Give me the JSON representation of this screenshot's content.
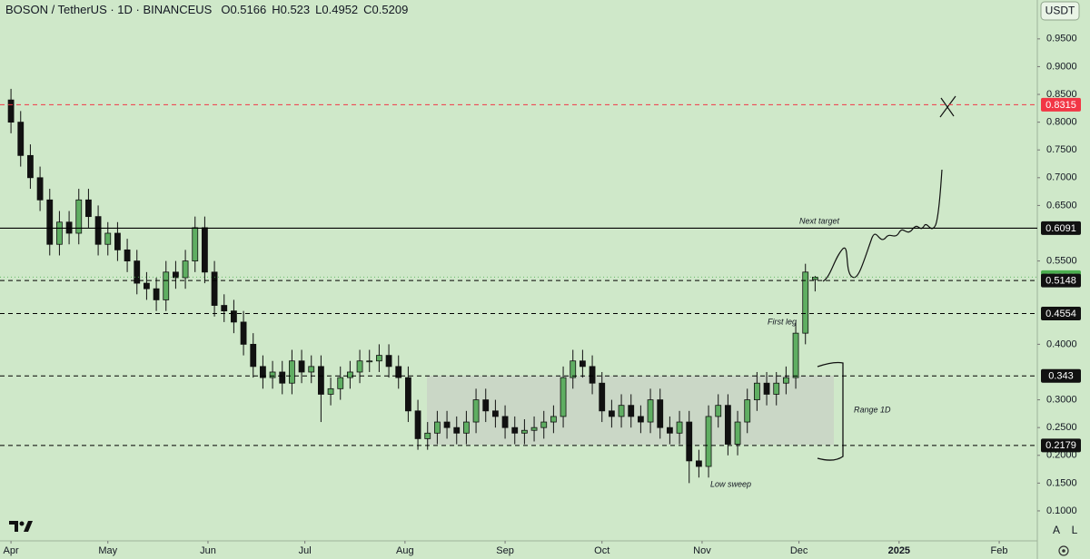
{
  "header": {
    "symbol": "BOSON / TetherUS · 1D · BINANCEUS",
    "ohlc": [
      {
        "label": "O",
        "value": 0.5166
      },
      {
        "label": "H",
        "value": 0.523
      },
      {
        "label": "L",
        "value": 0.4952
      },
      {
        "label": "C",
        "value": 0.5209
      }
    ]
  },
  "currency_button": "USDT",
  "scale_buttons": [
    "A",
    "L"
  ],
  "chart_data": {
    "type": "candlestick",
    "up_color": "#5fae62",
    "down_color": "#111111",
    "x": [
      0,
      3,
      6,
      9,
      12,
      15,
      18,
      21,
      24,
      27,
      30,
      33,
      36,
      39,
      42,
      45,
      48,
      51,
      54,
      57,
      60,
      63,
      66,
      69,
      72,
      75,
      78,
      81,
      84,
      87,
      90,
      93,
      96,
      99,
      102,
      105,
      108,
      111,
      114,
      117,
      120,
      123,
      126,
      129,
      132,
      135,
      138,
      141,
      144,
      147,
      150,
      153,
      156,
      159,
      162,
      165,
      168,
      171,
      174,
      177,
      180,
      183,
      186,
      189,
      192,
      195,
      198,
      201,
      204,
      207,
      210,
      213,
      216,
      219,
      222,
      225,
      228,
      231,
      234,
      237,
      240,
      243,
      246,
      249
    ],
    "open": [
      0.84,
      0.8,
      0.74,
      0.7,
      0.66,
      0.58,
      0.62,
      0.6,
      0.66,
      0.63,
      0.58,
      0.6,
      0.57,
      0.55,
      0.51,
      0.5,
      0.48,
      0.53,
      0.52,
      0.55,
      0.61,
      0.53,
      0.47,
      0.46,
      0.44,
      0.4,
      0.36,
      0.34,
      0.35,
      0.33,
      0.37,
      0.35,
      0.36,
      0.31,
      0.32,
      0.34,
      0.35,
      0.37,
      0.37,
      0.38,
      0.36,
      0.34,
      0.28,
      0.23,
      0.24,
      0.26,
      0.25,
      0.24,
      0.26,
      0.3,
      0.28,
      0.27,
      0.25,
      0.24,
      0.245,
      0.25,
      0.26,
      0.27,
      0.34,
      0.37,
      0.36,
      0.33,
      0.28,
      0.27,
      0.29,
      0.27,
      0.26,
      0.3,
      0.25,
      0.24,
      0.26,
      0.19,
      0.18,
      0.27,
      0.29,
      0.22,
      0.26,
      0.3,
      0.33,
      0.31,
      0.33,
      0.34,
      0.42,
      0.5166
    ],
    "high": [
      0.86,
      0.82,
      0.76,
      0.72,
      0.68,
      0.64,
      0.64,
      0.68,
      0.68,
      0.65,
      0.62,
      0.62,
      0.59,
      0.57,
      0.53,
      0.52,
      0.55,
      0.55,
      0.57,
      0.63,
      0.63,
      0.55,
      0.49,
      0.48,
      0.46,
      0.42,
      0.38,
      0.37,
      0.37,
      0.39,
      0.39,
      0.38,
      0.38,
      0.34,
      0.36,
      0.37,
      0.39,
      0.39,
      0.4,
      0.4,
      0.38,
      0.36,
      0.3,
      0.26,
      0.28,
      0.28,
      0.27,
      0.28,
      0.32,
      0.32,
      0.3,
      0.29,
      0.27,
      0.265,
      0.27,
      0.28,
      0.29,
      0.36,
      0.39,
      0.39,
      0.38,
      0.35,
      0.3,
      0.31,
      0.31,
      0.29,
      0.32,
      0.32,
      0.27,
      0.28,
      0.28,
      0.21,
      0.29,
      0.31,
      0.31,
      0.28,
      0.32,
      0.35,
      0.35,
      0.35,
      0.36,
      0.44,
      0.545,
      0.523
    ],
    "low": [
      0.78,
      0.72,
      0.68,
      0.64,
      0.56,
      0.56,
      0.58,
      0.58,
      0.61,
      0.56,
      0.56,
      0.55,
      0.53,
      0.49,
      0.48,
      0.46,
      0.46,
      0.5,
      0.5,
      0.53,
      0.51,
      0.45,
      0.44,
      0.42,
      0.38,
      0.34,
      0.32,
      0.32,
      0.31,
      0.31,
      0.33,
      0.33,
      0.26,
      0.29,
      0.3,
      0.32,
      0.33,
      0.35,
      0.35,
      0.34,
      0.32,
      0.26,
      0.21,
      0.21,
      0.22,
      0.23,
      0.22,
      0.22,
      0.24,
      0.26,
      0.25,
      0.23,
      0.22,
      0.22,
      0.225,
      0.23,
      0.24,
      0.25,
      0.32,
      0.34,
      0.31,
      0.26,
      0.25,
      0.25,
      0.25,
      0.24,
      0.24,
      0.23,
      0.22,
      0.22,
      0.15,
      0.16,
      0.16,
      0.25,
      0.2,
      0.2,
      0.24,
      0.28,
      0.29,
      0.29,
      0.31,
      0.32,
      0.4,
      0.4952
    ],
    "close": [
      0.8,
      0.74,
      0.7,
      0.66,
      0.58,
      0.62,
      0.6,
      0.66,
      0.63,
      0.58,
      0.6,
      0.57,
      0.55,
      0.51,
      0.5,
      0.48,
      0.53,
      0.52,
      0.55,
      0.61,
      0.53,
      0.47,
      0.46,
      0.44,
      0.4,
      0.36,
      0.34,
      0.35,
      0.33,
      0.37,
      0.35,
      0.36,
      0.31,
      0.32,
      0.34,
      0.35,
      0.37,
      0.37,
      0.38,
      0.36,
      0.34,
      0.28,
      0.23,
      0.24,
      0.26,
      0.25,
      0.24,
      0.26,
      0.3,
      0.28,
      0.27,
      0.25,
      0.24,
      0.245,
      0.25,
      0.26,
      0.27,
      0.34,
      0.37,
      0.36,
      0.33,
      0.28,
      0.27,
      0.29,
      0.27,
      0.26,
      0.3,
      0.25,
      0.24,
      0.26,
      0.19,
      0.18,
      0.27,
      0.29,
      0.22,
      0.26,
      0.3,
      0.33,
      0.31,
      0.33,
      0.34,
      0.42,
      0.53,
      0.5209
    ],
    "xlim": [
      -3.4,
      317.8
    ],
    "xticks": [
      {
        "value": 0,
        "label": "Apr"
      },
      {
        "value": 30,
        "label": "May"
      },
      {
        "value": 61,
        "label": "Jun"
      },
      {
        "value": 91,
        "label": "Jul"
      },
      {
        "value": 122,
        "label": "Aug"
      },
      {
        "value": 153,
        "label": "Sep"
      },
      {
        "value": 183,
        "label": "Oct"
      },
      {
        "value": 214,
        "label": "Nov"
      },
      {
        "value": 244,
        "label": "Dec"
      },
      {
        "value": 275,
        "label": "2025"
      },
      {
        "value": 306,
        "label": "Feb"
      }
    ],
    "ylim": [
      0.046,
      1.02
    ],
    "yticks": [
      {
        "value": 0.95,
        "label": "0.9500"
      },
      {
        "value": 0.9,
        "label": "0.9000"
      },
      {
        "value": 0.85,
        "label": "0.8500"
      },
      {
        "value": 0.8,
        "label": "0.8000"
      },
      {
        "value": 0.75,
        "label": "0.7500"
      },
      {
        "value": 0.7,
        "label": "0.7000"
      },
      {
        "value": 0.65,
        "label": "0.6500"
      },
      {
        "value": 0.55,
        "label": "0.5500"
      },
      {
        "value": 0.4,
        "label": "0.4000"
      },
      {
        "value": 0.3,
        "label": "0.3000"
      },
      {
        "value": 0.25,
        "label": "0.2500"
      },
      {
        "value": 0.2,
        "label": "0.2000"
      },
      {
        "value": 0.15,
        "label": "0.1500"
      },
      {
        "value": 0.1,
        "label": "0.1000"
      }
    ],
    "price_lines": [
      {
        "value": 0.8315,
        "color": "#f23645",
        "style": "dashed"
      },
      {
        "value": 0.6091,
        "color": "#000000",
        "style": "solid"
      },
      {
        "value": 0.5209,
        "color": "#4caf50",
        "style": "dotted"
      },
      {
        "value": 0.5148,
        "color": "#000000",
        "style": "dashed"
      },
      {
        "value": 0.4554,
        "color": "#000000",
        "style": "dashed"
      },
      {
        "value": 0.343,
        "color": "#000000",
        "style": "dashed"
      },
      {
        "value": 0.2179,
        "color": "#000000",
        "style": "dashed"
      }
    ],
    "annotations": [
      "Next target",
      "First leg",
      "Range 1D",
      "Low sweep"
    ]
  }
}
